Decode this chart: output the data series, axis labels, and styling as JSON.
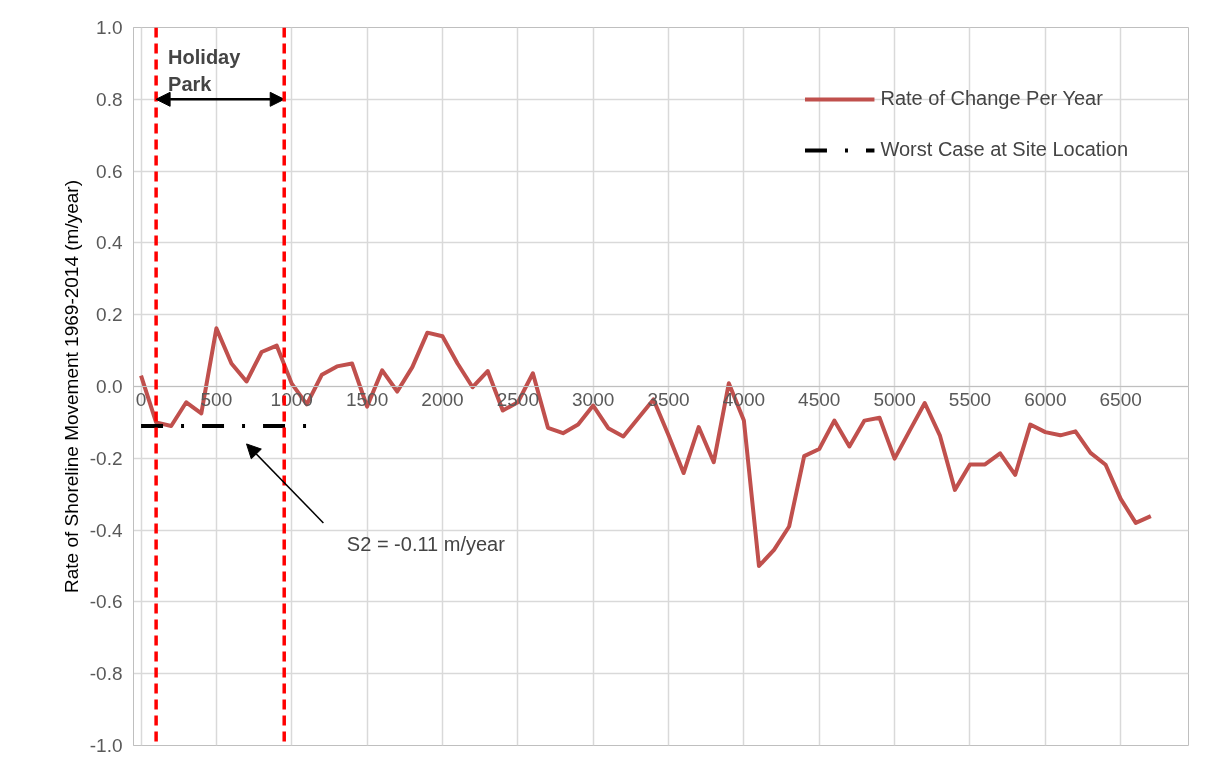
{
  "chart_data": {
    "type": "line",
    "ylabel": "Rate of Shoreline Movement 1969-2014 (m/year)",
    "xlim": [
      -50,
      6950
    ],
    "xticks": [
      0,
      500,
      1000,
      1500,
      2000,
      2500,
      3000,
      3500,
      4000,
      4500,
      5000,
      5500,
      6000,
      6500
    ],
    "ylim": [
      -1.0,
      1.0
    ],
    "yticks": [
      {
        "value": -1.0,
        "label": "-1.0"
      },
      {
        "value": -0.8,
        "label": "-0.8"
      },
      {
        "value": -0.6,
        "label": "-0.6"
      },
      {
        "value": -0.4,
        "label": "-0.4"
      },
      {
        "value": -0.2,
        "label": "-0.2"
      },
      {
        "value": 0.0,
        "label": "0.0"
      },
      {
        "value": 0.2,
        "label": "0.2"
      },
      {
        "value": 0.4,
        "label": "0.4"
      },
      {
        "value": 0.6,
        "label": "0.6"
      },
      {
        "value": 0.8,
        "label": "0.8"
      },
      {
        "value": 1.0,
        "label": "1.0"
      }
    ],
    "grid": true,
    "legend": "top right",
    "series": [
      {
        "name": "Rate of Change Per Year",
        "color": "#c0504d",
        "line_style": "solid",
        "x": [
          0,
          100,
          200,
          300,
          400,
          500,
          600,
          700,
          800,
          900,
          1000,
          1100,
          1200,
          1300,
          1400,
          1500,
          1600,
          1700,
          1800,
          1900,
          2000,
          2100,
          2200,
          2300,
          2400,
          2500,
          2600,
          2700,
          2800,
          2900,
          3000,
          3100,
          3200,
          3300,
          3400,
          3500,
          3600,
          3700,
          3800,
          3900,
          4000,
          4100,
          4200,
          4300,
          4400,
          4500,
          4600,
          4700,
          4800,
          4900,
          5000,
          5100,
          5200,
          5300,
          5400,
          5500,
          5600,
          5700,
          5800,
          5900,
          6000,
          6100,
          6200,
          6300,
          6400,
          6500,
          6600,
          6700
        ],
        "values": [
          0.03,
          -0.1,
          -0.11,
          -0.044,
          -0.075,
          0.162,
          0.064,
          0.014,
          0.096,
          0.114,
          0.008,
          -0.05,
          0.033,
          0.056,
          0.064,
          -0.056,
          0.045,
          -0.014,
          0.054,
          0.15,
          0.14,
          0.064,
          -0.002,
          0.043,
          -0.067,
          -0.044,
          0.037,
          -0.115,
          -0.13,
          -0.106,
          -0.053,
          -0.116,
          -0.139,
          -0.088,
          -0.036,
          -0.136,
          -0.241,
          -0.113,
          -0.211,
          0.009,
          -0.095,
          -0.5,
          -0.455,
          -0.39,
          -0.194,
          -0.174,
          -0.095,
          -0.167,
          -0.095,
          -0.087,
          -0.201,
          -0.123,
          -0.046,
          -0.136,
          -0.288,
          -0.217,
          -0.217,
          -0.186,
          -0.246,
          -0.106,
          -0.127,
          -0.136,
          -0.125,
          -0.185,
          -0.218,
          -0.313,
          -0.38,
          -0.361
        ]
      },
      {
        "name": "Worst Case at Site Location",
        "color": "#000000",
        "line_style": "dashdot",
        "x": [
          0,
          1100
        ],
        "values": [
          -0.11,
          -0.11
        ]
      }
    ],
    "ref_lines": [
      {
        "axis": "x",
        "value": 100,
        "label": "Holiday Park",
        "color": "#ff0000",
        "line_style": "dashed"
      },
      {
        "axis": "x",
        "value": 950,
        "color": "#ff0000",
        "line_style": "dashed"
      }
    ],
    "annotations": [
      "S2 = -0.11 m/year"
    ]
  }
}
